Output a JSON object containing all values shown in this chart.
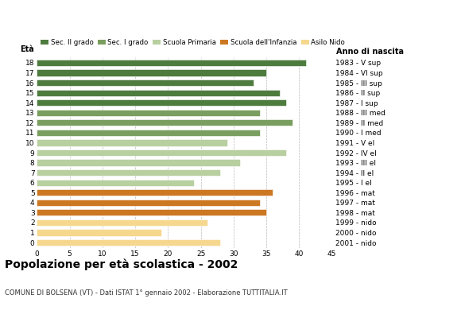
{
  "ages": [
    18,
    17,
    16,
    15,
    14,
    13,
    12,
    11,
    10,
    9,
    8,
    7,
    6,
    5,
    4,
    3,
    2,
    1,
    0
  ],
  "values": [
    41,
    35,
    33,
    37,
    38,
    34,
    39,
    34,
    29,
    38,
    31,
    28,
    24,
    36,
    34,
    35,
    26,
    19,
    28
  ],
  "anno_nascita": [
    "1983 - V sup",
    "1984 - VI sup",
    "1985 - III sup",
    "1986 - II sup",
    "1987 - I sup",
    "1988 - III med",
    "1989 - II med",
    "1990 - I med",
    "1991 - V el",
    "1992 - IV el",
    "1993 - III el",
    "1994 - II el",
    "1995 - I el",
    "1996 - mat",
    "1997 - mat",
    "1998 - mat",
    "1999 - nido",
    "2000 - nido",
    "2001 - nido"
  ],
  "colors": [
    "#4e7c3f",
    "#4e7c3f",
    "#4e7c3f",
    "#4e7c3f",
    "#4e7c3f",
    "#7a9e5f",
    "#7a9e5f",
    "#7a9e5f",
    "#b8cfa0",
    "#b8cfa0",
    "#b8cfa0",
    "#b8cfa0",
    "#b8cfa0",
    "#cc7722",
    "#cc7722",
    "#cc7722",
    "#f5d78e",
    "#f5d78e",
    "#f5d78e"
  ],
  "legend_labels": [
    "Sec. II grado",
    "Sec. I grado",
    "Scuola Primaria",
    "Scuola dell'Infanzia",
    "Asilo Nido"
  ],
  "legend_colors": [
    "#4e7c3f",
    "#7a9e5f",
    "#b8cfa0",
    "#cc7722",
    "#f5d78e"
  ],
  "title": "Popolazione per età scolastica - 2002",
  "subtitle": "COMUNE DI BOLSENA (VT) - Dati ISTAT 1° gennaio 2002 - Elaborazione TUTTITALIA.IT",
  "xlabel_eta": "Età",
  "xlabel_anno": "Anno di nascita",
  "xlim": [
    0,
    45
  ],
  "xticks": [
    0,
    5,
    10,
    15,
    20,
    25,
    30,
    35,
    40,
    45
  ],
  "background_color": "#ffffff",
  "grid_color": "#aaaaaa"
}
